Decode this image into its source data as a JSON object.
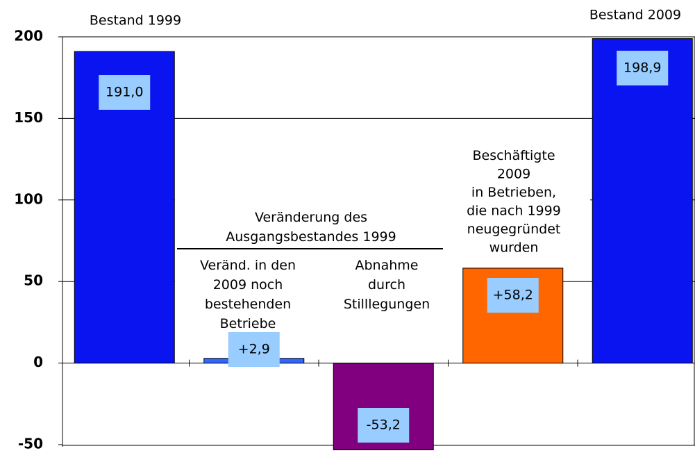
{
  "chart_data": {
    "type": "bar",
    "categories": [
      "Bestand 1999",
      "Veränd. in den\n2009 noch\nbestehenden\nBetriebe",
      "Abnahme\ndurch\nStilllegungen",
      "Beschäftigte\n2009\nin Betrieben,\ndie nach 1999\nneugegründet\nwurden",
      "Bestand 2009"
    ],
    "values": [
      191.0,
      2.9,
      -53.2,
      58.2,
      198.9
    ],
    "value_labels": [
      "191,0",
      "+2,9",
      "-53,2",
      "+58,2",
      "198,9"
    ],
    "colors": [
      "#0a14f0",
      "#3366ff",
      "#800080",
      "#ff6600",
      "#0a14f0"
    ],
    "annotation": "Veränderung des\nAusgangsbestandes 1999",
    "ylim": [
      -50,
      200
    ],
    "yticks": [
      -50,
      0,
      50,
      100,
      150,
      200
    ],
    "grid": true
  }
}
